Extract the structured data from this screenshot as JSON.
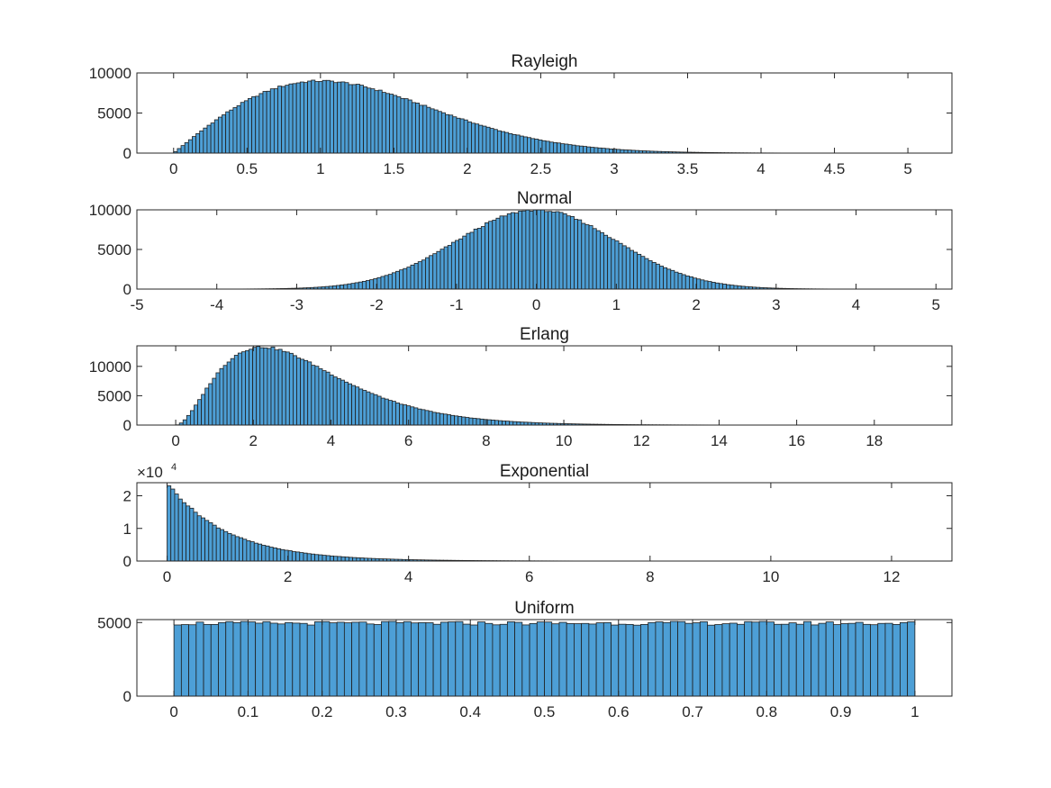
{
  "chart_data": [
    {
      "type": "bar",
      "title": "Rayleigh",
      "xlabel": "",
      "ylabel": "",
      "xlim": [
        -0.25,
        5.3
      ],
      "ylim": [
        0,
        10000
      ],
      "xticks": [
        0,
        0.5,
        1,
        1.5,
        2,
        2.5,
        3,
        3.5,
        4,
        4.5,
        5
      ],
      "xtick_labels": [
        "0",
        "0.5",
        "1",
        "1.5",
        "2",
        "2.5",
        "3",
        "3.5",
        "4",
        "4.5",
        "5"
      ],
      "yticks": [
        0,
        5000,
        10000
      ],
      "ytick_labels": [
        "0",
        "5000",
        "10000"
      ],
      "bins": {
        "start": 0,
        "end": 5.07,
        "count": 200
      },
      "density": "rayleigh",
      "params": {
        "sigma": 1,
        "peak": 9000
      },
      "grid": false
    },
    {
      "type": "bar",
      "title": "Normal",
      "xlabel": "",
      "ylabel": "",
      "xlim": [
        -5,
        5.2
      ],
      "ylim": [
        0,
        10000
      ],
      "xticks": [
        -5,
        -4,
        -3,
        -2,
        -1,
        0,
        1,
        2,
        3,
        4,
        5
      ],
      "xtick_labels": [
        "-5",
        "-4",
        "-3",
        "-2",
        "-1",
        "0",
        "1",
        "2",
        "3",
        "4",
        "5"
      ],
      "yticks": [
        0,
        5000,
        10000
      ],
      "ytick_labels": [
        "0",
        "5000",
        "10000"
      ],
      "bins": {
        "start": -4.55,
        "end": 4.75,
        "count": 200
      },
      "density": "normal",
      "params": {
        "mu": 0,
        "sigma": 1,
        "peak": 10000
      },
      "grid": false
    },
    {
      "type": "bar",
      "title": "Erlang",
      "xlabel": "",
      "ylabel": "",
      "xlim": [
        -1,
        20
      ],
      "ylim": [
        0,
        13500
      ],
      "xticks": [
        0,
        2,
        4,
        6,
        8,
        10,
        12,
        14,
        16,
        18
      ],
      "xtick_labels": [
        "0",
        "2",
        "4",
        "6",
        "8",
        "10",
        "12",
        "14",
        "16",
        "18"
      ],
      "yticks": [
        0,
        5000,
        10000
      ],
      "ytick_labels": [
        "0",
        "5000",
        "10000"
      ],
      "bins": {
        "start": 0,
        "end": 18.9,
        "count": 200
      },
      "density": "erlang",
      "params": {
        "k": 3,
        "lambda": 0.9,
        "peak": 13300
      },
      "grid": false
    },
    {
      "type": "bar",
      "title": "Exponential",
      "xlabel": "",
      "ylabel": "",
      "xlim": [
        -0.5,
        13
      ],
      "ylim": [
        0,
        24000
      ],
      "xticks": [
        0,
        2,
        4,
        6,
        8,
        10,
        12
      ],
      "xtick_labels": [
        "0",
        "2",
        "4",
        "6",
        "8",
        "10",
        "12"
      ],
      "yticks": [
        0,
        10000,
        20000
      ],
      "ytick_labels": [
        "0",
        "1",
        "2"
      ],
      "y_multiplier": {
        "base": "×10",
        "exponent": "4"
      },
      "bins": {
        "start": 0,
        "end": 12.55,
        "count": 200
      },
      "density": "exponential",
      "params": {
        "lambda": 1,
        "peak": 24000
      },
      "grid": false
    },
    {
      "type": "bar",
      "title": "Uniform",
      "xlabel": "",
      "ylabel": "",
      "xlim": [
        -0.05,
        1.05
      ],
      "ylim": [
        0,
        5200
      ],
      "xticks": [
        0,
        0.1,
        0.2,
        0.3,
        0.4,
        0.5,
        0.6,
        0.7,
        0.8,
        0.9,
        1
      ],
      "xtick_labels": [
        "0",
        "0.1",
        "0.2",
        "0.3",
        "0.4",
        "0.5",
        "0.6",
        "0.7",
        "0.8",
        "0.9",
        "1"
      ],
      "yticks": [
        0,
        5000
      ],
      "ytick_labels": [
        "0",
        "5000"
      ],
      "bins": {
        "start": 0,
        "end": 1,
        "count": 100
      },
      "density": "uniform",
      "params": {
        "level": 4950
      },
      "grid": false
    }
  ],
  "style": {
    "bar_fill": "#4d9fd6",
    "bar_edge": "#1f1f1f",
    "axis_color": "#262626",
    "background": "#ffffff"
  }
}
